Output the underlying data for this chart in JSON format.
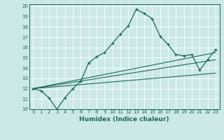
{
  "xlabel": "Humidex (Indice chaleur)",
  "bg_color": "#cce8e8",
  "line_color": "#1a6b5a",
  "grid_color": "#ffffff",
  "xlim": [
    -0.5,
    23.5
  ],
  "ylim": [
    10,
    20.2
  ],
  "xticks": [
    0,
    1,
    2,
    3,
    4,
    5,
    6,
    7,
    8,
    9,
    10,
    11,
    12,
    13,
    14,
    15,
    16,
    17,
    18,
    19,
    20,
    21,
    22,
    23
  ],
  "yticks": [
    10,
    11,
    12,
    13,
    14,
    15,
    16,
    17,
    18,
    19,
    20
  ],
  "main_line_x": [
    0,
    1,
    2,
    3,
    4,
    5,
    6,
    7,
    8,
    9,
    10,
    11,
    12,
    13,
    14,
    15,
    16,
    17,
    18,
    19,
    20,
    21,
    22,
    23
  ],
  "main_line_y": [
    12.0,
    11.8,
    11.1,
    10.0,
    11.1,
    12.0,
    12.7,
    14.5,
    15.1,
    15.5,
    16.4,
    17.3,
    18.1,
    19.7,
    19.3,
    18.8,
    17.1,
    16.3,
    15.3,
    15.2,
    15.3,
    13.8,
    14.8,
    15.8
  ],
  "line2_x": [
    0,
    23
  ],
  "line2_y": [
    12.0,
    15.5
  ],
  "line3_x": [
    0,
    23
  ],
  "line3_y": [
    12.0,
    14.8
  ],
  "line4_x": [
    0,
    23
  ],
  "line4_y": [
    12.0,
    13.5
  ],
  "xlabel_fontsize": 6.5,
  "tick_fontsize": 5.0
}
